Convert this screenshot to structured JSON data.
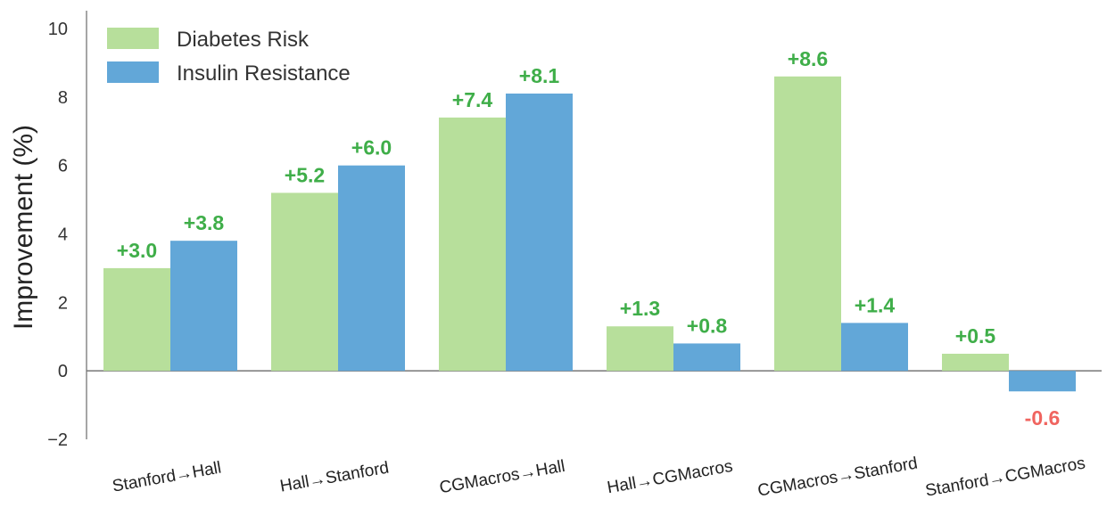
{
  "chart_data": {
    "type": "bar",
    "title": "",
    "xlabel": "",
    "ylabel": "Improvement (%)",
    "ylim": [
      -2,
      10
    ],
    "yticks": [
      -2,
      0,
      2,
      4,
      6,
      8,
      10
    ],
    "ytick_labels": [
      "−2",
      "0",
      "2",
      "4",
      "6",
      "8",
      "10"
    ],
    "grid": false,
    "legend_position": "top-left",
    "categories": [
      "Stanford→Hall",
      "Hall→Stanford",
      "CGMacros→Hall",
      "Hall→CGMacros",
      "CGMacros→Stanford",
      "Stanford→CGMacros"
    ],
    "series": [
      {
        "name": "Diabetes Risk",
        "color": "#b7df9b",
        "values": [
          3.0,
          5.2,
          7.4,
          1.3,
          8.6,
          0.5
        ],
        "labels": [
          "+3.0",
          "+5.2",
          "+7.4",
          "+1.3",
          "+8.6",
          "+0.5"
        ]
      },
      {
        "name": "Insulin Resistance",
        "color": "#62a7d8",
        "values": [
          3.8,
          6.0,
          8.1,
          0.8,
          1.4,
          -0.6
        ],
        "labels": [
          "+3.8",
          "+6.0",
          "+8.1",
          "+0.8",
          "+1.4",
          "-0.6"
        ]
      }
    ],
    "positive_label_color": "#3fae49",
    "negative_label_color": "#f0645f"
  }
}
